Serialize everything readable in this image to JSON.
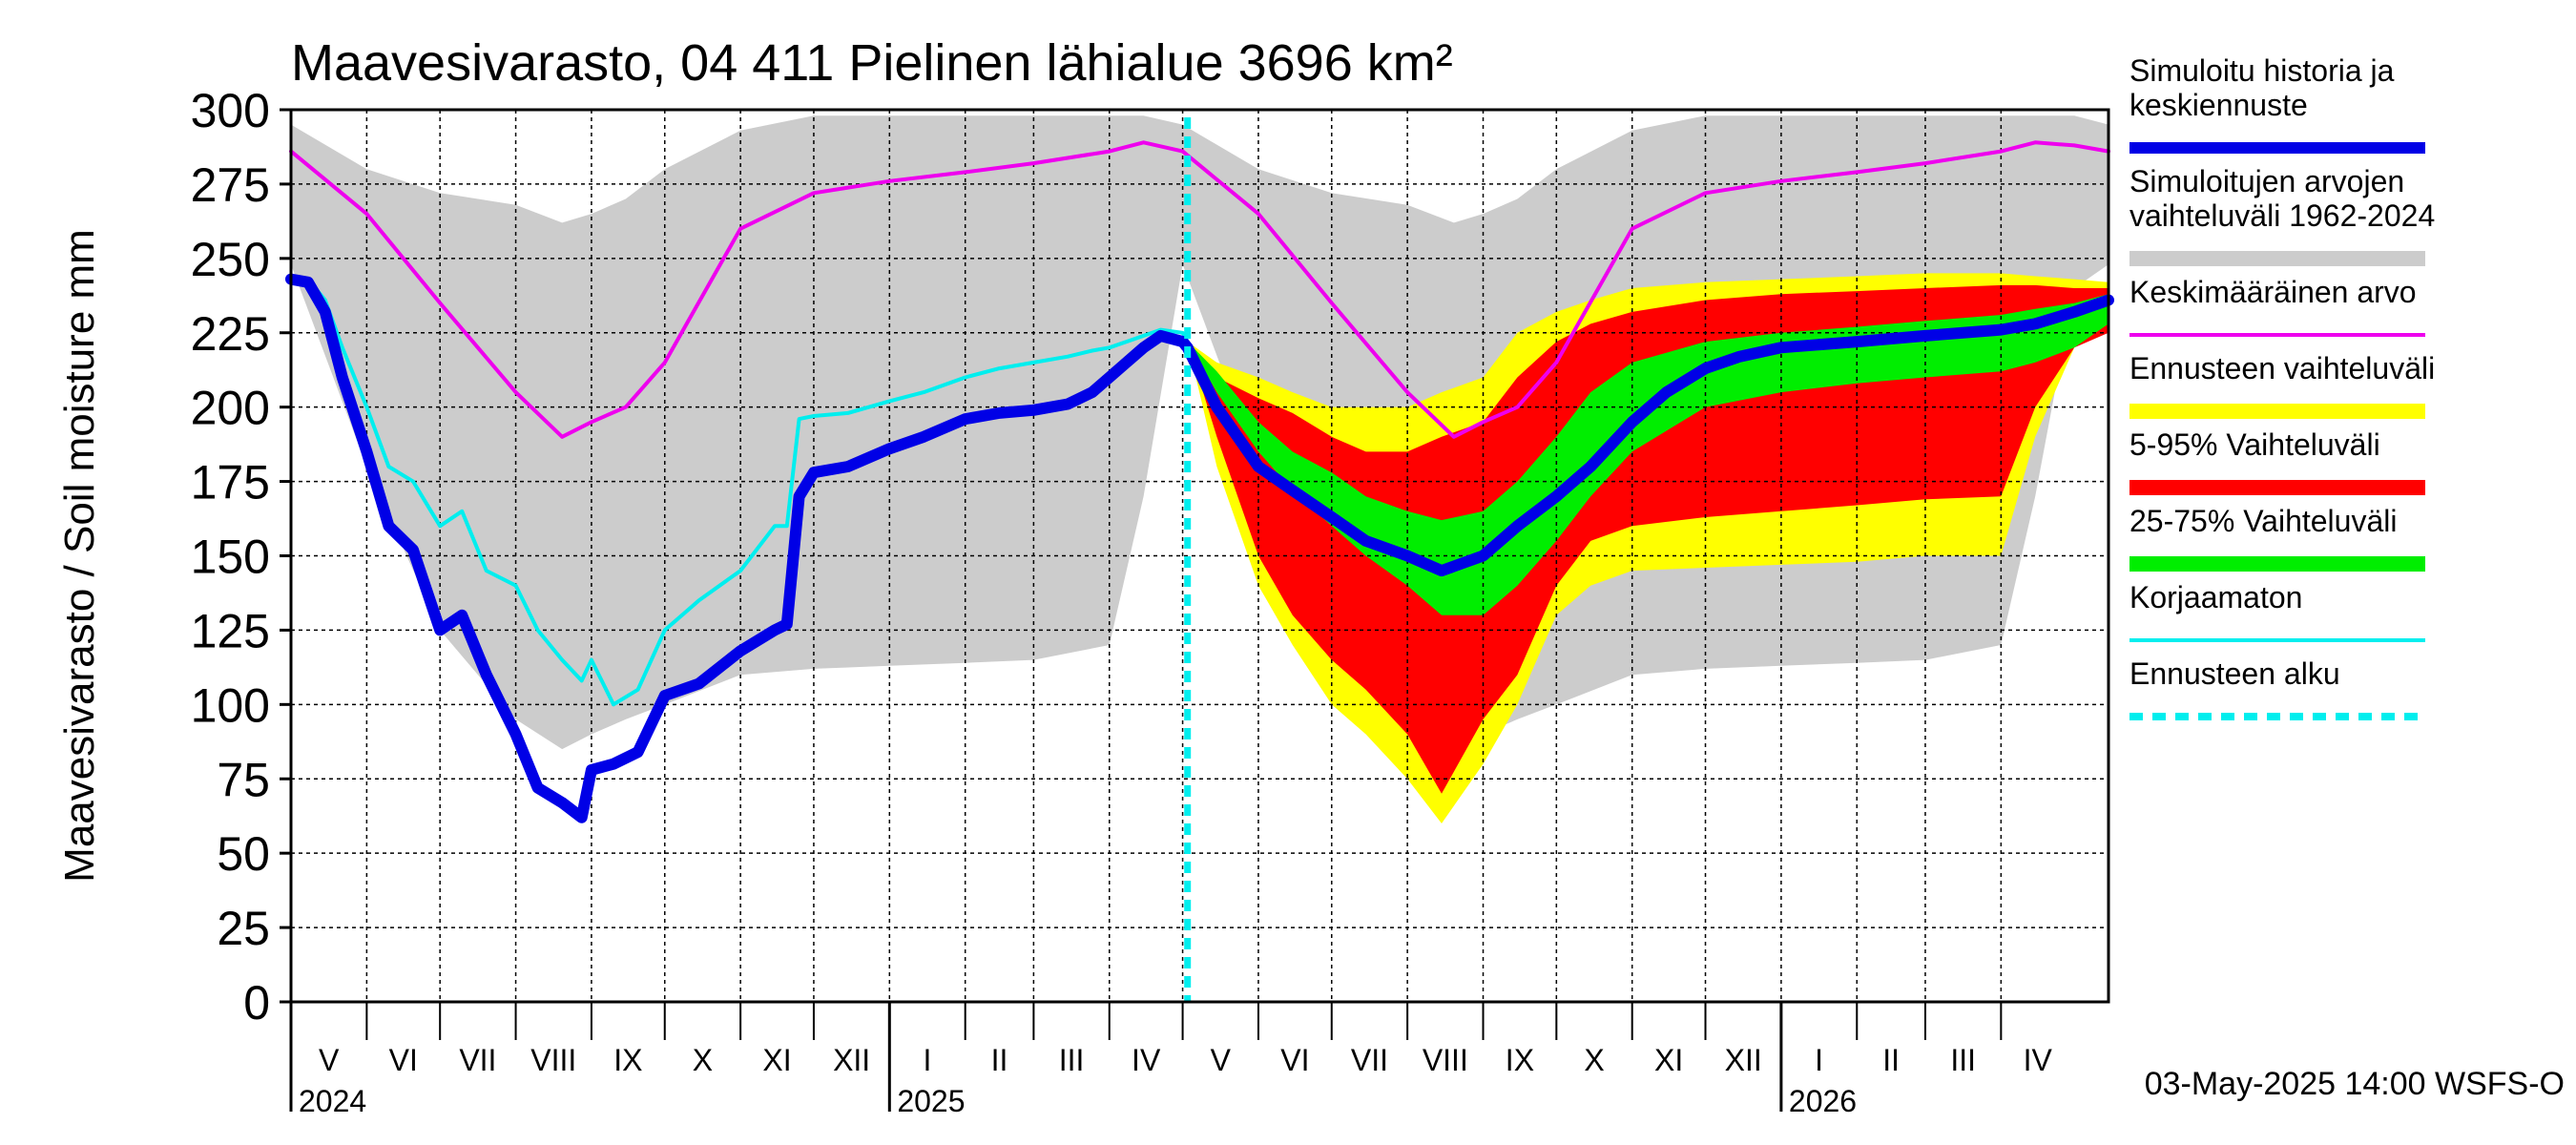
{
  "title": "Maavesivarasto, 04 411 Pielinen lähialue 3696 km²",
  "footer": "03-May-2025 14:00 WSFS-O",
  "chart_data": {
    "type": "area",
    "ylabel": "Maavesivarasto / Soil moisture   mm",
    "ylim": [
      0,
      300
    ],
    "yticks": [
      0,
      25,
      50,
      75,
      100,
      125,
      150,
      175,
      200,
      225,
      250,
      275,
      300
    ],
    "xlim": [
      "2024-05-01",
      "2026-05-15"
    ],
    "grid": true,
    "legend_position": "right",
    "forecast_start": "2025-05-03",
    "months": [
      "V",
      "VI",
      "VII",
      "VIII",
      "IX",
      "X",
      "XI",
      "XII",
      "I",
      "II",
      "III",
      "IV",
      "V",
      "VI",
      "VII",
      "VIII",
      "IX",
      "X",
      "XI",
      "XII",
      "I",
      "II",
      "III",
      "IV"
    ],
    "years": [
      "2024",
      "2025",
      "2026"
    ],
    "legend": [
      {
        "label": "Simuloitu historia ja keskiennuste",
        "color": "#0000e6",
        "style": "thick"
      },
      {
        "label": "Simuloitujen arvojen vaihteluväli 1962-2024",
        "color": "#cccccc",
        "style": "band"
      },
      {
        "label": "Keskimääräinen arvo",
        "color": "#ee00ee",
        "style": "line"
      },
      {
        "label": "Ennusteen vaihteluväli",
        "color": "#ffff00",
        "style": "band"
      },
      {
        "label": "5-95% Vaihteluväli",
        "color": "#ff0000",
        "style": "band"
      },
      {
        "label": "25-75% Vaihteluväli",
        "color": "#00ee00",
        "style": "band"
      },
      {
        "label": "Korjaamaton",
        "color": "#00eeee",
        "style": "line"
      },
      {
        "label": "Ennusteen alku",
        "color": "#00eeee",
        "style": "dashed"
      }
    ],
    "series": [
      {
        "name": "Simuloitu historia ja keskiennuste",
        "x": [
          "2024-05-01",
          "2024-05-08",
          "2024-05-15",
          "2024-05-22",
          "2024-06-01",
          "2024-06-10",
          "2024-06-20",
          "2024-07-01",
          "2024-07-10",
          "2024-07-20",
          "2024-08-01",
          "2024-08-10",
          "2024-08-20",
          "2024-08-28",
          "2024-09-01",
          "2024-09-10",
          "2024-09-20",
          "2024-10-01",
          "2024-10-15",
          "2024-11-01",
          "2024-11-15",
          "2024-11-20",
          "2024-11-25",
          "2024-12-01",
          "2024-12-15",
          "2025-01-01",
          "2025-01-15",
          "2025-02-01",
          "2025-02-15",
          "2025-03-01",
          "2025-03-15",
          "2025-03-25",
          "2025-04-01",
          "2025-04-08",
          "2025-04-15",
          "2025-04-22",
          "2025-05-01",
          "2025-05-03",
          "2025-05-15",
          "2025-06-01",
          "2025-06-15",
          "2025-07-01",
          "2025-07-15",
          "2025-08-01",
          "2025-08-15",
          "2025-09-01",
          "2025-09-15",
          "2025-10-01",
          "2025-10-15",
          "2025-11-01",
          "2025-11-15",
          "2025-12-01",
          "2025-12-15",
          "2026-01-01",
          "2026-02-01",
          "2026-03-01",
          "2026-04-01",
          "2026-04-15",
          "2026-05-01",
          "2026-05-15"
        ],
        "values": [
          243,
          242,
          232,
          210,
          185,
          160,
          152,
          125,
          130,
          110,
          90,
          72,
          67,
          62,
          78,
          80,
          84,
          103,
          107,
          118,
          125,
          127,
          170,
          178,
          180,
          186,
          190,
          196,
          198,
          199,
          201,
          205,
          210,
          215,
          220,
          224,
          222,
          220,
          200,
          180,
          172,
          163,
          155,
          150,
          145,
          150,
          160,
          170,
          180,
          195,
          205,
          213,
          217,
          220,
          222,
          224,
          226,
          228,
          232,
          236
        ]
      },
      {
        "name": "Korjaamaton",
        "x": [
          "2024-05-01",
          "2024-05-08",
          "2024-05-15",
          "2024-05-22",
          "2024-06-01",
          "2024-06-10",
          "2024-06-20",
          "2024-07-01",
          "2024-07-10",
          "2024-07-20",
          "2024-08-01",
          "2024-08-10",
          "2024-08-20",
          "2024-08-28",
          "2024-09-01",
          "2024-09-10",
          "2024-09-20",
          "2024-10-01",
          "2024-10-15",
          "2024-11-01",
          "2024-11-15",
          "2024-11-20",
          "2024-11-25",
          "2024-12-01",
          "2024-12-15",
          "2025-01-01",
          "2025-01-15",
          "2025-02-01",
          "2025-02-15",
          "2025-03-01",
          "2025-03-15",
          "2025-03-25",
          "2025-04-01",
          "2025-04-08",
          "2025-04-15",
          "2025-04-22",
          "2025-05-01",
          "2025-05-03"
        ],
        "values": [
          244,
          243,
          236,
          220,
          200,
          180,
          175,
          160,
          165,
          145,
          140,
          125,
          115,
          108,
          115,
          100,
          105,
          125,
          135,
          145,
          160,
          160,
          196,
          197,
          198,
          202,
          205,
          210,
          213,
          215,
          217,
          219,
          220,
          222,
          224,
          226,
          225,
          222
        ]
      },
      {
        "name": "Keskimääräinen arvo",
        "x": [
          "2024-05-01",
          "2024-06-01",
          "2024-07-01",
          "2024-08-01",
          "2024-08-20",
          "2024-09-01",
          "2024-09-15",
          "2024-10-01",
          "2024-11-01",
          "2024-12-01",
          "2025-01-01",
          "2025-02-01",
          "2025-03-01",
          "2025-04-01",
          "2025-04-15",
          "2025-05-01",
          "2025-06-01",
          "2025-07-01",
          "2025-08-01",
          "2025-08-20",
          "2025-09-01",
          "2025-09-15",
          "2025-10-01",
          "2025-11-01",
          "2025-12-01",
          "2026-01-01",
          "2026-02-01",
          "2026-03-01",
          "2026-04-01",
          "2026-04-15",
          "2026-05-01",
          "2026-05-15"
        ],
        "values": [
          286,
          265,
          235,
          205,
          190,
          195,
          200,
          215,
          260,
          272,
          276,
          279,
          282,
          286,
          289,
          286,
          265,
          235,
          205,
          190,
          195,
          200,
          215,
          260,
          272,
          276,
          279,
          282,
          286,
          289,
          288,
          286
        ]
      },
      {
        "name": "Simuloitujen arvojen vaihteluväli 1962-2024",
        "x": [
          "2024-05-01",
          "2024-06-01",
          "2024-07-01",
          "2024-08-01",
          "2024-08-20",
          "2024-09-01",
          "2024-09-15",
          "2024-10-01",
          "2024-11-01",
          "2024-12-01",
          "2025-01-01",
          "2025-02-01",
          "2025-03-01",
          "2025-04-01",
          "2025-04-15",
          "2025-05-01",
          "2025-06-01",
          "2025-07-01",
          "2025-08-01",
          "2025-08-20",
          "2025-09-01",
          "2025-09-15",
          "2025-10-01",
          "2025-11-01",
          "2025-12-01",
          "2026-01-01",
          "2026-02-01",
          "2026-03-01",
          "2026-04-01",
          "2026-04-15",
          "2026-05-01",
          "2026-05-15"
        ],
        "low": [
          248,
          180,
          125,
          95,
          85,
          90,
          95,
          100,
          110,
          112,
          113,
          114,
          115,
          120,
          170,
          248,
          180,
          125,
          95,
          85,
          90,
          95,
          100,
          110,
          112,
          113,
          114,
          115,
          120,
          170,
          240,
          248
        ],
        "high": [
          295,
          280,
          272,
          268,
          262,
          265,
          270,
          280,
          293,
          298,
          298,
          298,
          298,
          298,
          298,
          295,
          280,
          272,
          268,
          262,
          265,
          270,
          280,
          293,
          298,
          298,
          298,
          298,
          298,
          298,
          298,
          295
        ]
      },
      {
        "name": "Ennusteen vaihteluväli",
        "x": [
          "2025-05-03",
          "2025-05-15",
          "2025-06-01",
          "2025-06-15",
          "2025-07-01",
          "2025-07-15",
          "2025-08-01",
          "2025-08-15",
          "2025-09-01",
          "2025-09-15",
          "2025-10-01",
          "2025-10-15",
          "2025-11-01",
          "2025-12-01",
          "2026-01-01",
          "2026-02-01",
          "2026-03-01",
          "2026-04-01",
          "2026-04-15",
          "2026-05-01",
          "2026-05-15"
        ],
        "low": [
          222,
          180,
          140,
          120,
          100,
          90,
          75,
          60,
          80,
          100,
          130,
          140,
          145,
          146,
          147,
          148,
          150,
          150,
          190,
          220,
          230
        ],
        "high": [
          222,
          215,
          210,
          205,
          200,
          200,
          200,
          205,
          210,
          225,
          232,
          236,
          240,
          242,
          243,
          244,
          245,
          245,
          244,
          243,
          242
        ]
      },
      {
        "name": "5-95% Vaihteluväli",
        "x": [
          "2025-05-03",
          "2025-05-15",
          "2025-06-01",
          "2025-06-15",
          "2025-07-01",
          "2025-07-15",
          "2025-08-01",
          "2025-08-15",
          "2025-09-01",
          "2025-09-15",
          "2025-10-01",
          "2025-10-15",
          "2025-11-01",
          "2025-12-01",
          "2026-01-01",
          "2026-02-01",
          "2026-03-01",
          "2026-04-01",
          "2026-04-15",
          "2026-05-01",
          "2026-05-15"
        ],
        "low": [
          222,
          190,
          150,
          130,
          115,
          105,
          90,
          70,
          95,
          110,
          140,
          155,
          160,
          163,
          165,
          167,
          169,
          170,
          200,
          220,
          225
        ],
        "high": [
          222,
          210,
          203,
          198,
          190,
          185,
          185,
          190,
          195,
          210,
          222,
          228,
          232,
          236,
          238,
          239,
          240,
          241,
          241,
          240,
          240
        ]
      },
      {
        "name": "25-75% Vaihteluväli",
        "x": [
          "2025-05-03",
          "2025-05-15",
          "2025-06-01",
          "2025-06-15",
          "2025-07-01",
          "2025-07-15",
          "2025-08-01",
          "2025-08-15",
          "2025-09-01",
          "2025-09-15",
          "2025-10-01",
          "2025-10-15",
          "2025-11-01",
          "2025-12-01",
          "2026-01-01",
          "2026-02-01",
          "2026-03-01",
          "2026-04-01",
          "2026-04-15",
          "2026-05-01",
          "2026-05-15"
        ],
        "low": [
          222,
          205,
          185,
          172,
          160,
          150,
          140,
          130,
          130,
          140,
          155,
          170,
          185,
          200,
          205,
          208,
          210,
          212,
          215,
          220,
          228
        ],
        "high": [
          222,
          212,
          195,
          185,
          178,
          170,
          165,
          162,
          165,
          175,
          190,
          205,
          215,
          222,
          225,
          227,
          229,
          231,
          233,
          235,
          238
        ]
      }
    ]
  }
}
